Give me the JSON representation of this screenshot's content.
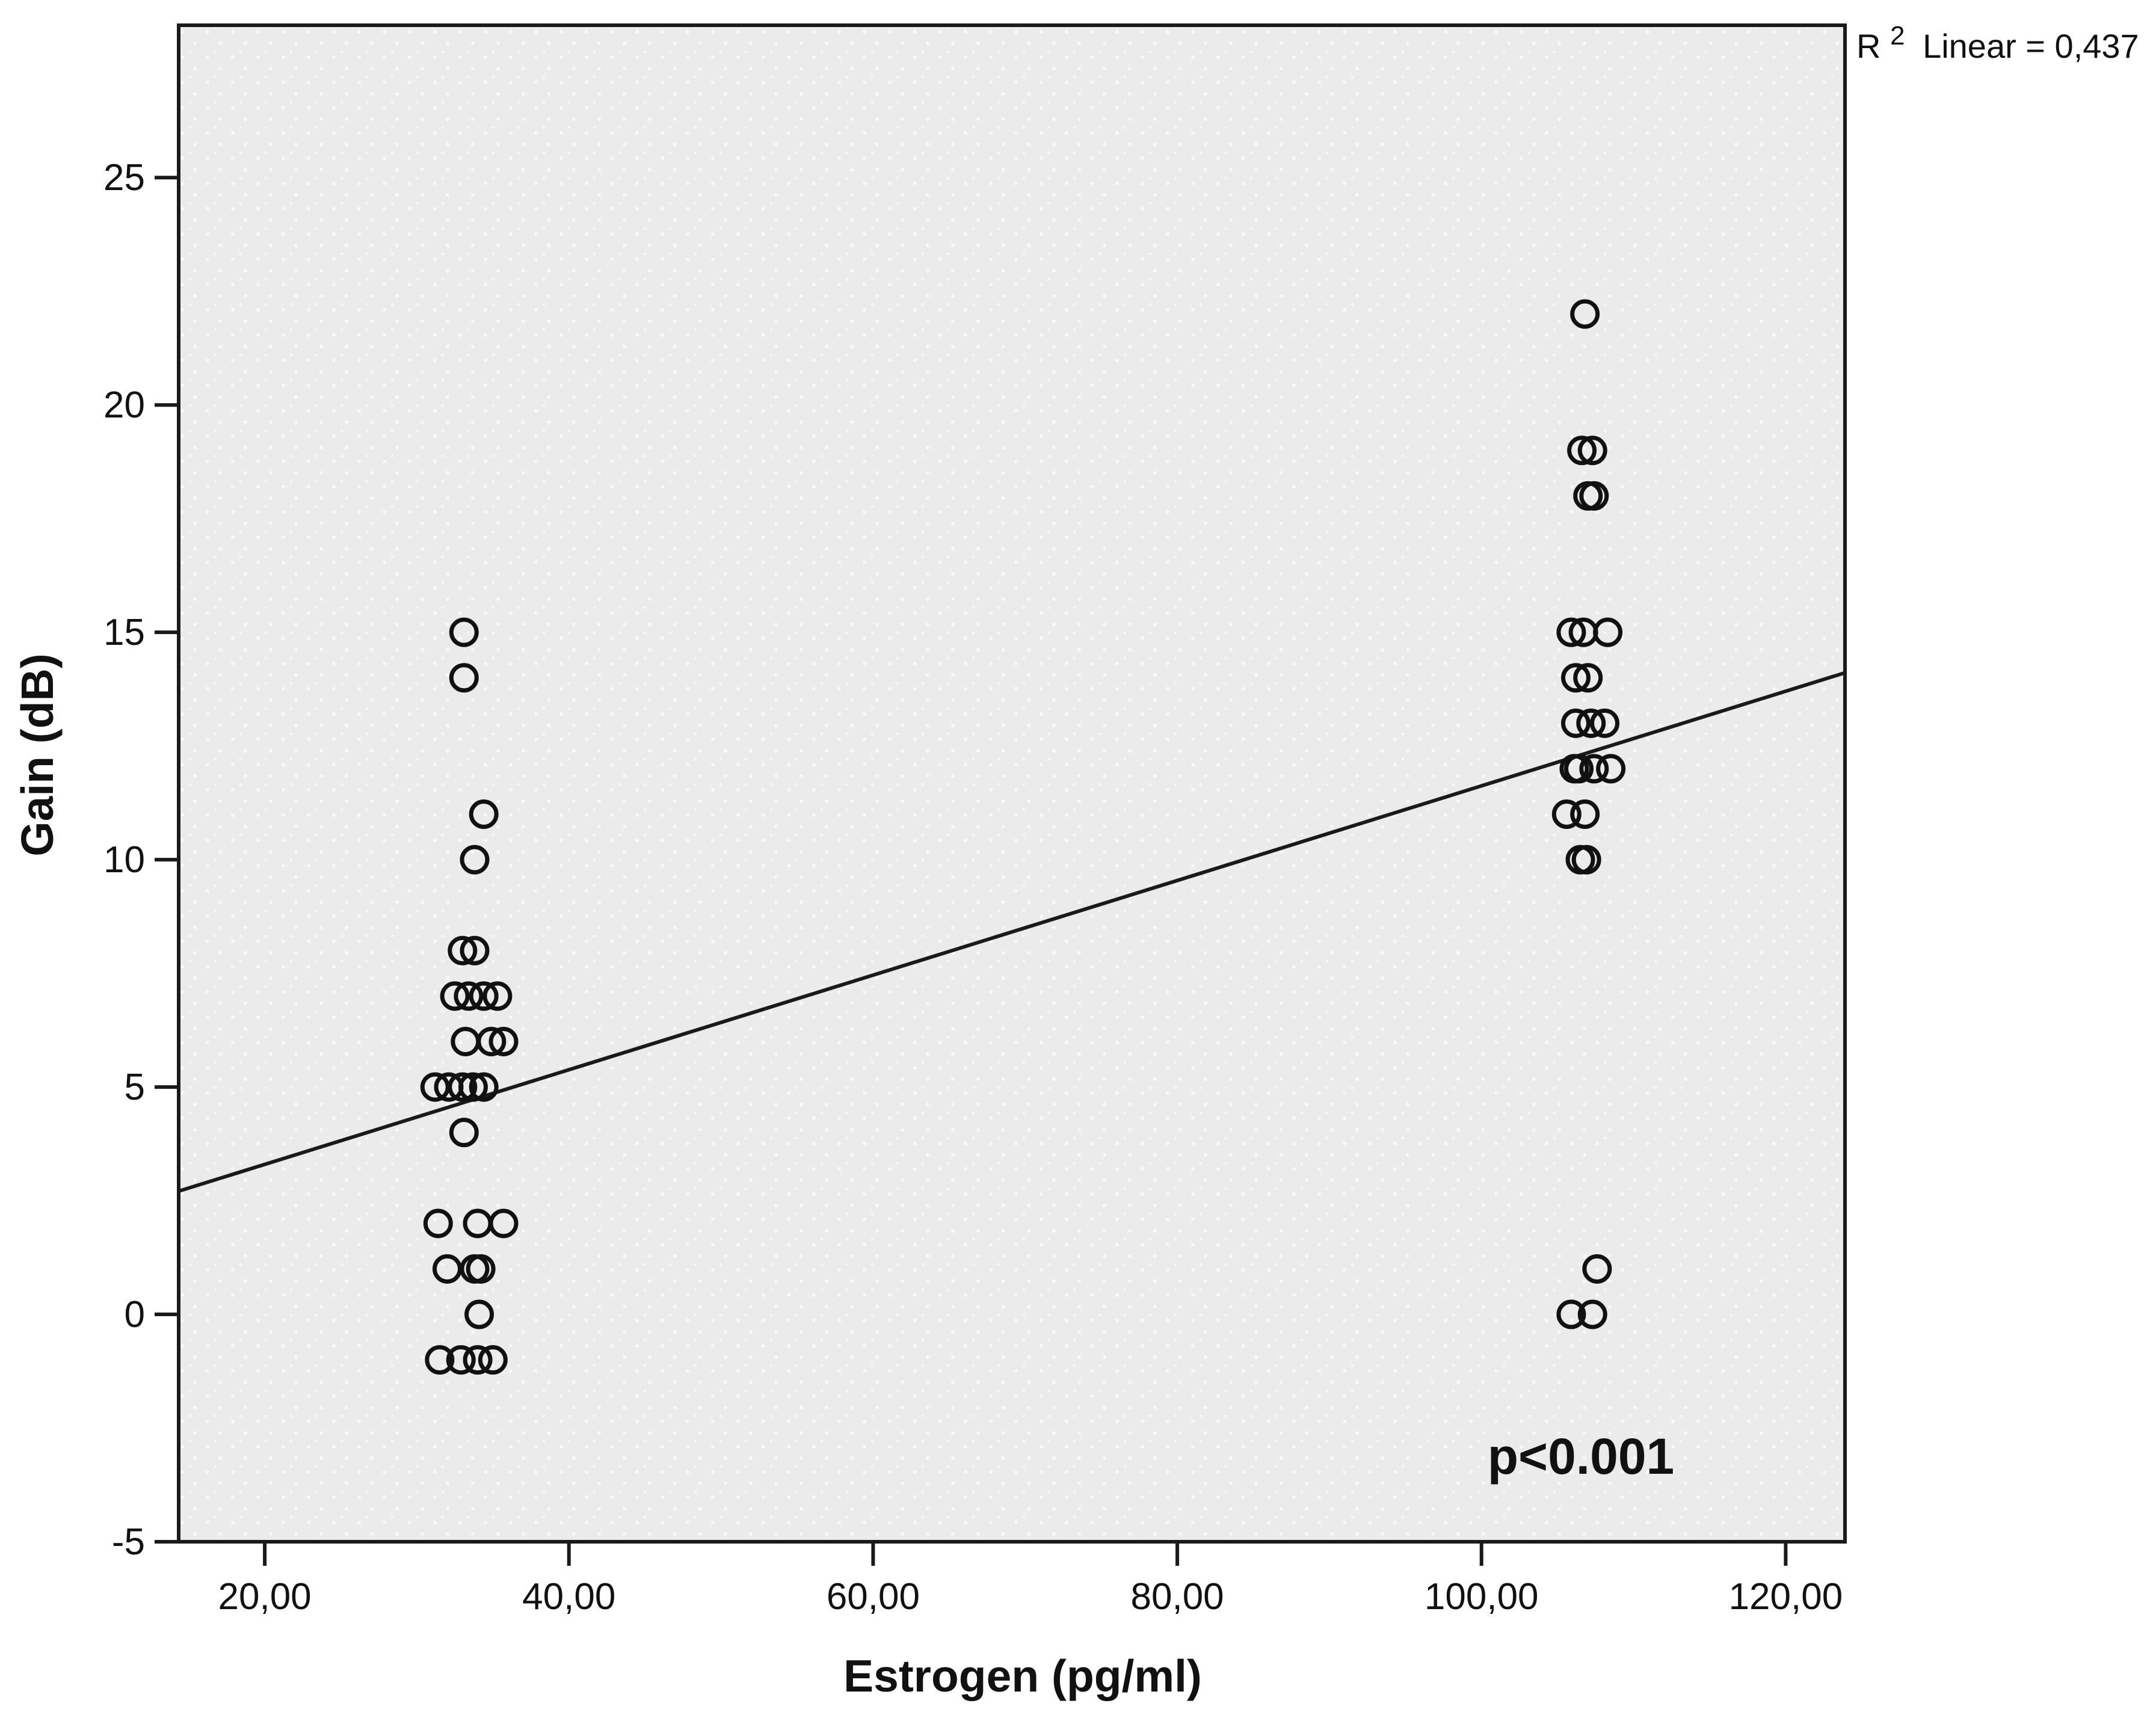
{
  "chart_data": {
    "type": "scatter",
    "title": "",
    "xlabel": "Estrogen (pg/ml)",
    "ylabel": "Gain (dB)",
    "xlim": [
      14.34,
      123.9
    ],
    "ylim": [
      -5,
      28.35
    ],
    "grid": false,
    "legend": "none",
    "x_ticks": [
      {
        "value": 20,
        "label": "20,00"
      },
      {
        "value": 40,
        "label": "40,00"
      },
      {
        "value": 60,
        "label": "60,00"
      },
      {
        "value": 80,
        "label": "80,00"
      },
      {
        "value": 100,
        "label": "100,00"
      },
      {
        "value": 120,
        "label": "120,00"
      }
    ],
    "y_ticks": [
      {
        "value": -5,
        "label": "-5"
      },
      {
        "value": 0,
        "label": "0"
      },
      {
        "value": 5,
        "label": "5"
      },
      {
        "value": 10,
        "label": "10"
      },
      {
        "value": 15,
        "label": "15"
      },
      {
        "value": 20,
        "label": "20"
      },
      {
        "value": 25,
        "label": "25"
      }
    ],
    "points": [
      [
        33.1,
        15
      ],
      [
        33.1,
        14
      ],
      [
        34.4,
        11
      ],
      [
        33.8,
        10
      ],
      [
        33.0,
        8
      ],
      [
        33.8,
        8
      ],
      [
        32.5,
        7
      ],
      [
        33.4,
        7
      ],
      [
        34.4,
        7
      ],
      [
        35.3,
        7
      ],
      [
        33.2,
        6
      ],
      [
        34.9,
        6
      ],
      [
        35.7,
        6
      ],
      [
        31.2,
        5
      ],
      [
        32.1,
        5
      ],
      [
        33.0,
        5
      ],
      [
        33.7,
        5
      ],
      [
        34.4,
        5
      ],
      [
        33.1,
        4
      ],
      [
        31.4,
        2
      ],
      [
        34.0,
        2
      ],
      [
        35.7,
        2
      ],
      [
        32.0,
        1
      ],
      [
        33.8,
        1
      ],
      [
        34.2,
        1
      ],
      [
        34.1,
        0
      ],
      [
        31.5,
        -1
      ],
      [
        32.9,
        -1
      ],
      [
        34.0,
        -1
      ],
      [
        35.0,
        -1
      ],
      [
        106.8,
        22
      ],
      [
        106.6,
        19
      ],
      [
        107.3,
        19
      ],
      [
        107.0,
        18
      ],
      [
        107.4,
        18
      ],
      [
        105.9,
        15
      ],
      [
        106.7,
        15
      ],
      [
        108.3,
        15
      ],
      [
        106.2,
        14
      ],
      [
        107.0,
        14
      ],
      [
        106.2,
        13
      ],
      [
        107.2,
        13
      ],
      [
        108.1,
        13
      ],
      [
        106.1,
        12
      ],
      [
        106.4,
        12
      ],
      [
        107.4,
        12
      ],
      [
        108.5,
        12
      ],
      [
        105.6,
        11
      ],
      [
        106.8,
        11
      ],
      [
        106.5,
        10
      ],
      [
        106.9,
        10
      ],
      [
        107.6,
        1
      ],
      [
        105.9,
        0
      ],
      [
        107.3,
        0
      ]
    ],
    "regression_line": {
      "x1": 14.34,
      "y1": 2.71,
      "x2": 123.9,
      "y2": 14.11
    },
    "annotations": {
      "r2_prefix": "R",
      "r2_sup": "2",
      "r2_rest": "Linear = 0,437",
      "p_value": "p<0.001"
    },
    "colors": {
      "plot_bg": "#ebebeb",
      "frame": "#1a1a1a",
      "marker": "#111111",
      "line": "#1a1a1a",
      "text": "#111111"
    }
  }
}
